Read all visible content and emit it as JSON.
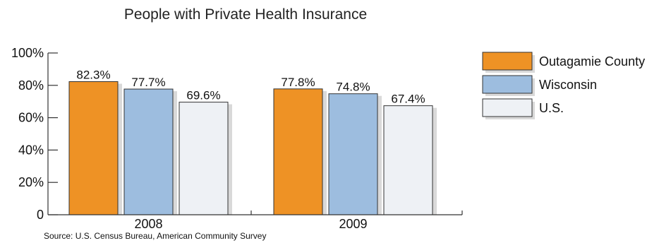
{
  "chart_data": {
    "type": "bar",
    "title": "People with Private Health Insurance",
    "categories": [
      "2008",
      "2009"
    ],
    "series": [
      {
        "name": "Outagamie County",
        "values": [
          82.3,
          77.8
        ],
        "labels": [
          "82.3%",
          "77.8%"
        ],
        "color": "#EE9225"
      },
      {
        "name": "Wisconsin",
        "values": [
          77.7,
          74.8
        ],
        "labels": [
          "77.7%",
          "74.8%"
        ],
        "color": "#9DBDDF"
      },
      {
        "name": "U.S.",
        "values": [
          69.6,
          67.4
        ],
        "labels": [
          "69.6%",
          "67.4%"
        ],
        "color": "#EEF1F5"
      }
    ],
    "y_ticks": [
      "0",
      "20%",
      "40%",
      "60%",
      "80%",
      "100%"
    ],
    "ylim": [
      0,
      100
    ],
    "xlabel": "",
    "ylabel": "",
    "grid": false,
    "legend_position": "right",
    "source": "Source:  U.S. Census Bureau, American Community Survey"
  }
}
